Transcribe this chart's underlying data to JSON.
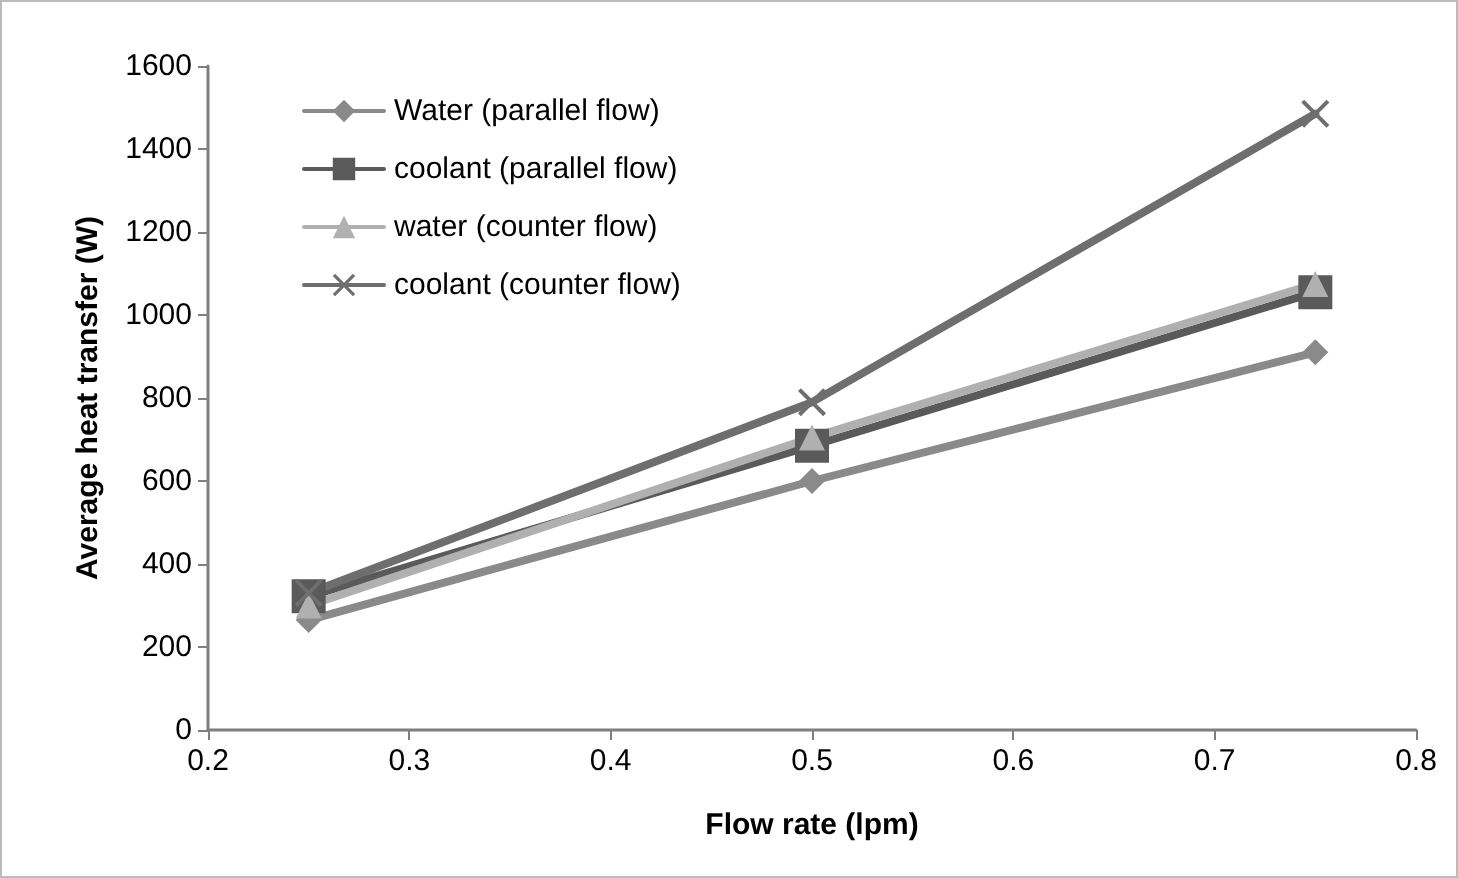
{
  "chart_data": {
    "type": "line",
    "xlabel": "Flow rate (lpm)",
    "ylabel": "Average heat transfer (W)",
    "x": [
      0.25,
      0.5,
      0.75
    ],
    "series": [
      {
        "name": "Water (parallel flow)",
        "color": "#8a8a8a",
        "marker": "diamond",
        "values": [
          265,
          600,
          910
        ]
      },
      {
        "name": "coolant (parallel flow)",
        "color": "#5a5a5a",
        "marker": "square",
        "values": [
          322,
          685,
          1055
        ]
      },
      {
        "name": "water (counter flow)",
        "color": "#b0b0b0",
        "marker": "triangle",
        "values": [
          300,
          705,
          1075
        ]
      },
      {
        "name": "coolant (counter flow)",
        "color": "#6e6e6e",
        "marker": "cross",
        "values": [
          330,
          790,
          1485
        ]
      }
    ],
    "xlim": [
      0.2,
      0.8
    ],
    "xticks": [
      0.2,
      0.3,
      0.4,
      0.5,
      0.6,
      0.7,
      0.8
    ],
    "ylim": [
      0,
      1600
    ],
    "yticks": [
      0,
      200,
      400,
      600,
      800,
      1000,
      1200,
      1400,
      1600
    ],
    "grid": false,
    "legend": "top left",
    "line_style": "solid"
  }
}
